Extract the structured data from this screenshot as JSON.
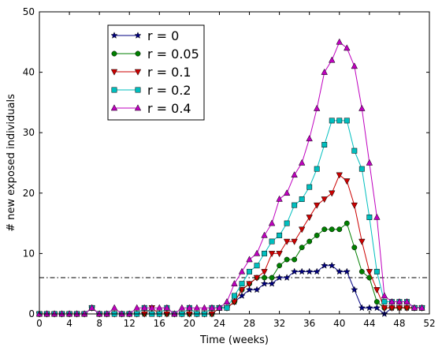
{
  "chart_data": {
    "type": "line",
    "title": "",
    "xlabel": "Time (weeks)",
    "ylabel": "# new exposed individuals",
    "xlim": [
      0,
      52
    ],
    "ylim": [
      0,
      50
    ],
    "xticks": [
      0,
      4,
      8,
      12,
      16,
      20,
      24,
      28,
      32,
      36,
      40,
      44,
      48,
      52
    ],
    "yticks": [
      0,
      10,
      20,
      30,
      40,
      50
    ],
    "grid": false,
    "legend_position": "top-left",
    "threshold_line": {
      "y": 6,
      "style": "dash-dot",
      "color": "#000000"
    },
    "x": [
      0,
      1,
      2,
      3,
      4,
      5,
      6,
      7,
      8,
      9,
      10,
      11,
      12,
      13,
      14,
      15,
      16,
      17,
      18,
      19,
      20,
      21,
      22,
      23,
      24,
      25,
      26,
      27,
      28,
      29,
      30,
      31,
      32,
      33,
      34,
      35,
      36,
      37,
      38,
      39,
      40,
      41,
      42,
      43,
      44,
      45,
      46,
      47,
      48,
      49,
      50,
      51
    ],
    "series": [
      {
        "name": "r = 0",
        "color": "#000080",
        "marker": "star",
        "values": [
          0,
          0,
          0,
          0,
          0,
          0,
          0,
          1,
          0,
          0,
          0,
          0,
          0,
          0,
          0,
          0,
          0,
          0,
          0,
          0,
          0,
          0,
          0,
          0,
          1,
          1,
          2,
          3,
          4,
          4,
          5,
          5,
          6,
          6,
          7,
          7,
          7,
          7,
          8,
          8,
          7,
          7,
          4,
          1,
          1,
          1,
          0,
          1,
          1,
          1,
          1,
          1
        ]
      },
      {
        "name": "r = 0.05",
        "color": "#007f00",
        "marker": "circle",
        "values": [
          0,
          0,
          0,
          0,
          0,
          0,
          0,
          1,
          0,
          0,
          0,
          0,
          0,
          0,
          0,
          0,
          0,
          0,
          0,
          0,
          0,
          0,
          0,
          0,
          1,
          1,
          2,
          4,
          5,
          6,
          6,
          6,
          8,
          9,
          9,
          11,
          12,
          13,
          14,
          14,
          14,
          15,
          11,
          7,
          6,
          2,
          1,
          1,
          1,
          1,
          1,
          1
        ]
      },
      {
        "name": "r = 0.1",
        "color": "#cc0000",
        "marker": "triangle-down",
        "values": [
          0,
          0,
          0,
          0,
          0,
          0,
          0,
          1,
          0,
          0,
          0,
          0,
          0,
          0,
          0,
          1,
          0,
          0,
          0,
          0,
          0,
          0,
          0,
          0,
          1,
          1,
          2,
          4,
          5,
          6,
          7,
          10,
          10,
          12,
          12,
          14,
          16,
          18,
          19,
          20,
          23,
          22,
          18,
          12,
          7,
          4,
          1,
          1,
          1,
          1,
          1,
          1
        ]
      },
      {
        "name": "r = 0.2",
        "color": "#00bfbf",
        "marker": "square",
        "values": [
          0,
          0,
          0,
          0,
          0,
          0,
          0,
          1,
          0,
          0,
          0,
          0,
          0,
          0,
          1,
          0,
          0,
          1,
          0,
          0,
          1,
          0,
          0,
          1,
          1,
          1,
          3,
          5,
          7,
          8,
          10,
          12,
          13,
          15,
          18,
          19,
          21,
          24,
          28,
          32,
          32,
          32,
          27,
          24,
          16,
          7,
          2,
          2,
          2,
          2,
          1,
          1
        ]
      },
      {
        "name": "r = 0.4",
        "color": "#bf00bf",
        "marker": "triangle-up",
        "values": [
          0,
          0,
          0,
          0,
          0,
          0,
          0,
          1,
          0,
          0,
          1,
          0,
          0,
          1,
          1,
          1,
          1,
          1,
          0,
          1,
          1,
          1,
          1,
          1,
          1,
          2,
          5,
          7,
          9,
          10,
          13,
          15,
          19,
          20,
          23,
          25,
          29,
          34,
          40,
          42,
          45,
          44,
          41,
          34,
          25,
          16,
          3,
          2,
          2,
          2,
          1,
          1
        ]
      }
    ]
  }
}
